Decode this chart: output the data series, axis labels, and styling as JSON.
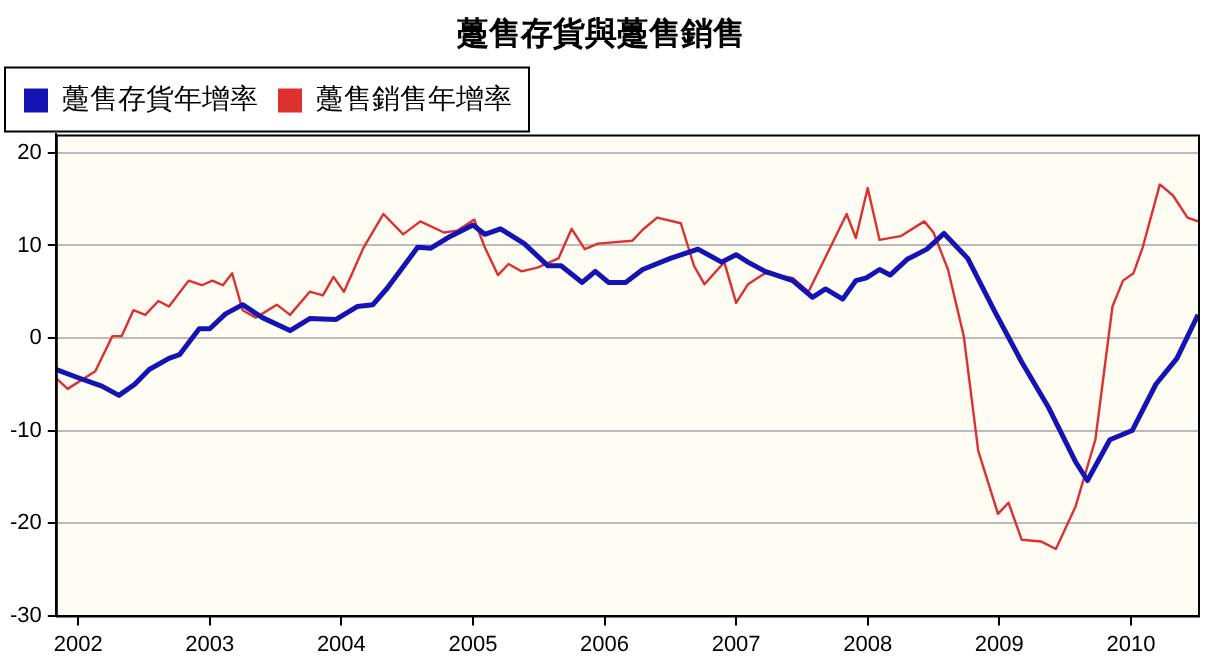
{
  "chart_data": {
    "type": "line",
    "title": "躉售存貨與躉售銷售",
    "legend": "top left",
    "grid": "y",
    "marker": "none",
    "line_style": "solid",
    "xlim": [
      2001.83,
      2010.51
    ],
    "xticks": [
      2002,
      2003,
      2004,
      2005,
      2006,
      2007,
      2008,
      2009,
      2010
    ],
    "ylim": [
      -30,
      22
    ],
    "yticks": [
      -30,
      -20,
      -10,
      0,
      10,
      20
    ],
    "series": [
      {
        "name": "躉售存貨年增率",
        "color": "#1414b4",
        "x": [
          2001.83,
          2002.0,
          2002.18,
          2002.31,
          2002.43,
          2002.54,
          2002.69,
          2002.77,
          2002.92,
          2003.0,
          2003.12,
          2003.25,
          2003.4,
          2003.61,
          2003.76,
          2003.96,
          2004.12,
          2004.24,
          2004.35,
          2004.58,
          2004.68,
          2004.83,
          2005.0,
          2005.09,
          2005.21,
          2005.39,
          2005.57,
          2005.67,
          2005.83,
          2005.93,
          2006.03,
          2006.16,
          2006.29,
          2006.5,
          2006.71,
          2006.89,
          2007.0,
          2007.09,
          2007.22,
          2007.43,
          2007.58,
          2007.68,
          2007.81,
          2007.91,
          2007.99,
          2008.09,
          2008.17,
          2008.3,
          2008.45,
          2008.58,
          2008.76,
          2008.96,
          2009.17,
          2009.37,
          2009.58,
          2009.67,
          2009.84,
          2010.01,
          2010.19,
          2010.35,
          2010.51
        ],
        "values": [
          -3.4,
          -4.3,
          -5.2,
          -6.2,
          -5.0,
          -3.4,
          -2.2,
          -1.8,
          1.0,
          1.0,
          2.6,
          3.6,
          2.2,
          0.8,
          2.1,
          2.0,
          3.4,
          3.6,
          5.4,
          9.8,
          9.7,
          11,
          12.2,
          11.2,
          11.8,
          10.2,
          7.8,
          7.8,
          6,
          7.2,
          6,
          6,
          7.4,
          8.6,
          9.6,
          8.2,
          9.0,
          8.2,
          7.2,
          6.2,
          4.4,
          5.3,
          4.2,
          6.2,
          6.5,
          7.4,
          6.8,
          8.5,
          9.6,
          11.3,
          8.6,
          3.0,
          -2.6,
          -7.4,
          -13.4,
          -15.4,
          -11,
          -10,
          -5,
          -2.2,
          2.5
        ]
      },
      {
        "name": "躉售銷售年增率",
        "color": "#dd3030",
        "x": [
          2001.83,
          2001.92,
          2002.13,
          2002.26,
          2002.33,
          2002.42,
          2002.51,
          2002.61,
          2002.69,
          2002.84,
          2002.94,
          2003.02,
          2003.1,
          2003.17,
          2003.25,
          2003.35,
          2003.51,
          2003.61,
          2003.76,
          2003.86,
          2003.94,
          2004.02,
          2004.17,
          2004.32,
          2004.47,
          2004.6,
          2004.78,
          2004.88,
          2005.01,
          2005.09,
          2005.19,
          2005.27,
          2005.37,
          2005.49,
          2005.65,
          2005.75,
          2005.85,
          2005.95,
          2006.21,
          2006.29,
          2006.4,
          2006.58,
          2006.68,
          2006.76,
          2006.91,
          2007.0,
          2007.09,
          2007.22,
          2007.43,
          2007.55,
          2007.73,
          2007.84,
          2007.91,
          2008.0,
          2008.09,
          2008.25,
          2008.43,
          2008.5,
          2008.61,
          2008.73,
          2008.84,
          2008.99,
          2009.07,
          2009.17,
          2009.32,
          2009.43,
          2009.58,
          2009.73,
          2009.86,
          2009.94,
          2010.02,
          2010.09,
          2010.22,
          2010.32,
          2010.43,
          2010.51
        ],
        "values": [
          -4.3,
          -5.5,
          -3.6,
          0.2,
          0.2,
          3,
          2.5,
          4,
          3.4,
          6.2,
          5.7,
          6.2,
          5.7,
          7,
          3,
          2.2,
          3.6,
          2.5,
          5,
          4.6,
          6.6,
          5,
          9.8,
          13.4,
          11.2,
          12.6,
          11.4,
          11.6,
          12.8,
          9.8,
          6.8,
          8,
          7.2,
          7.6,
          8.6,
          11.8,
          9.6,
          10.2,
          10.5,
          11.7,
          13,
          12.4,
          7.8,
          5.8,
          8.2,
          3.8,
          5.8,
          7,
          6.5,
          5,
          10.2,
          13.4,
          10.8,
          16.2,
          10.6,
          11,
          12.6,
          11.4,
          7.4,
          0.2,
          -12.2,
          -19,
          -17.8,
          -21.8,
          -22,
          -22.8,
          -18.2,
          -11,
          3.4,
          6.2,
          7,
          9.8,
          16.6,
          15.4,
          13,
          12.6
        ]
      }
    ]
  }
}
